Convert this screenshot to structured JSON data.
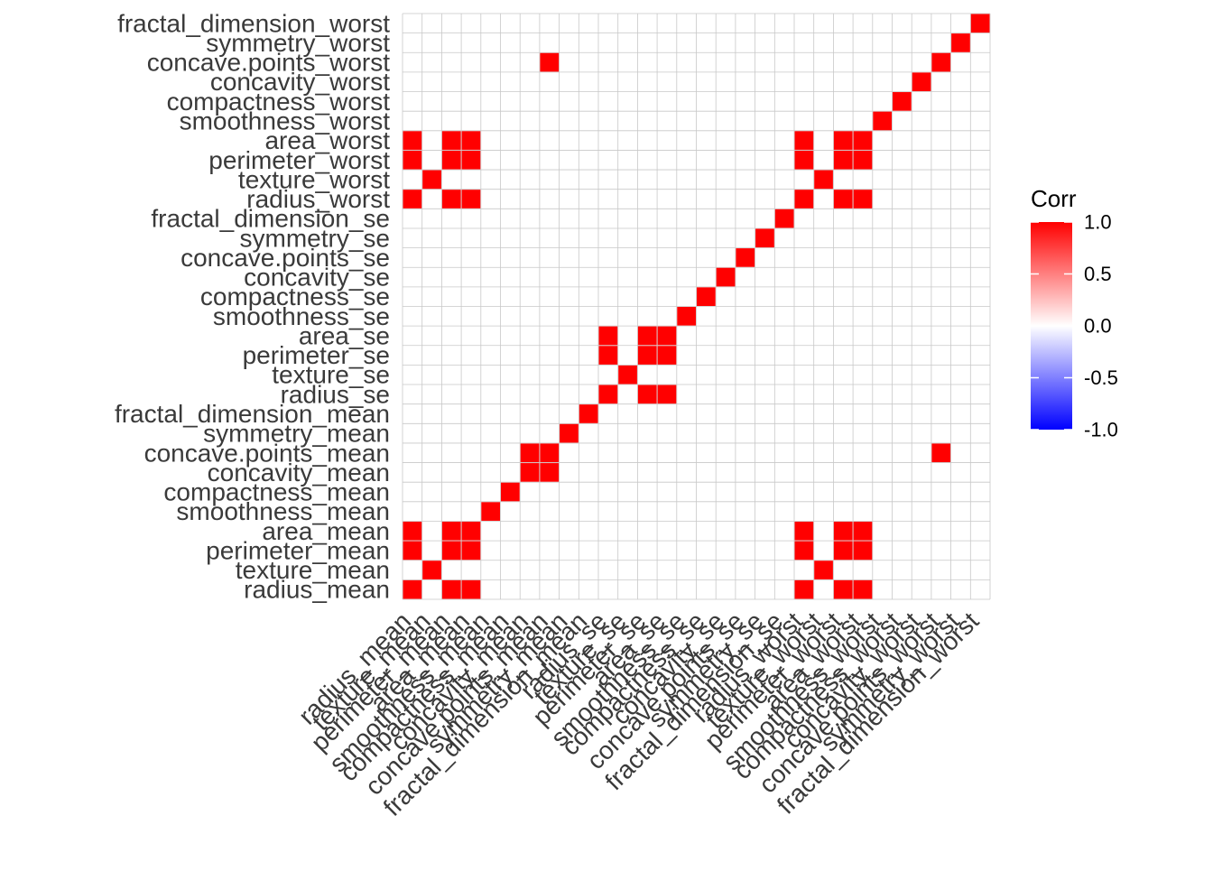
{
  "chart_data": {
    "type": "heatmap",
    "title": "",
    "xlabel": "",
    "ylabel": "",
    "variables": [
      "radius_mean",
      "texture_mean",
      "perimeter_mean",
      "area_mean",
      "smoothness_mean",
      "compactness_mean",
      "concavity_mean",
      "concave.points_mean",
      "symmetry_mean",
      "fractal_dimension_mean",
      "radius_se",
      "texture_se",
      "perimeter_se",
      "area_se",
      "smoothness_se",
      "compactness_se",
      "concavity_se",
      "concave.points_se",
      "symmetry_se",
      "fractal_dimension_se",
      "radius_worst",
      "texture_worst",
      "perimeter_worst",
      "area_worst",
      "smoothness_worst",
      "compactness_worst",
      "concavity_worst",
      "concave.points_worst",
      "symmetry_worst",
      "fractal_dimension_worst"
    ],
    "cells": [
      [
        0,
        0,
        1
      ],
      [
        0,
        2,
        1
      ],
      [
        0,
        3,
        1
      ],
      [
        0,
        20,
        1
      ],
      [
        0,
        22,
        1
      ],
      [
        0,
        23,
        1
      ],
      [
        1,
        1,
        1
      ],
      [
        1,
        21,
        1
      ],
      [
        2,
        0,
        1
      ],
      [
        2,
        2,
        1
      ],
      [
        2,
        3,
        1
      ],
      [
        2,
        20,
        1
      ],
      [
        2,
        22,
        1
      ],
      [
        2,
        23,
        1
      ],
      [
        3,
        0,
        1
      ],
      [
        3,
        2,
        1
      ],
      [
        3,
        3,
        1
      ],
      [
        3,
        20,
        1
      ],
      [
        3,
        22,
        1
      ],
      [
        3,
        23,
        1
      ],
      [
        4,
        4,
        1
      ],
      [
        5,
        5,
        1
      ],
      [
        6,
        6,
        1
      ],
      [
        6,
        7,
        1
      ],
      [
        7,
        6,
        1
      ],
      [
        7,
        7,
        1
      ],
      [
        7,
        27,
        1
      ],
      [
        8,
        8,
        1
      ],
      [
        9,
        9,
        1
      ],
      [
        10,
        10,
        1
      ],
      [
        10,
        12,
        1
      ],
      [
        10,
        13,
        1
      ],
      [
        11,
        11,
        1
      ],
      [
        12,
        10,
        1
      ],
      [
        12,
        12,
        1
      ],
      [
        12,
        13,
        1
      ],
      [
        13,
        10,
        1
      ],
      [
        13,
        12,
        1
      ],
      [
        13,
        13,
        1
      ],
      [
        14,
        14,
        1
      ],
      [
        15,
        15,
        1
      ],
      [
        16,
        16,
        1
      ],
      [
        17,
        17,
        1
      ],
      [
        18,
        18,
        1
      ],
      [
        19,
        19,
        1
      ],
      [
        20,
        0,
        1
      ],
      [
        20,
        2,
        1
      ],
      [
        20,
        3,
        1
      ],
      [
        20,
        20,
        1
      ],
      [
        20,
        22,
        1
      ],
      [
        20,
        23,
        1
      ],
      [
        21,
        1,
        1
      ],
      [
        21,
        21,
        1
      ],
      [
        22,
        0,
        1
      ],
      [
        22,
        2,
        1
      ],
      [
        22,
        3,
        1
      ],
      [
        22,
        20,
        1
      ],
      [
        22,
        22,
        1
      ],
      [
        22,
        23,
        1
      ],
      [
        23,
        0,
        1
      ],
      [
        23,
        2,
        1
      ],
      [
        23,
        3,
        1
      ],
      [
        23,
        20,
        1
      ],
      [
        23,
        22,
        1
      ],
      [
        23,
        23,
        1
      ],
      [
        24,
        24,
        1
      ],
      [
        25,
        25,
        1
      ],
      [
        26,
        26,
        1
      ],
      [
        27,
        7,
        1
      ],
      [
        27,
        27,
        1
      ],
      [
        28,
        28,
        1
      ],
      [
        29,
        29,
        1
      ]
    ],
    "cell_format": "[column_index, row_index, correlation]",
    "empty_cell_value": 0,
    "value_range": [
      -1,
      1
    ],
    "colors": {
      "low": "#0000ff",
      "mid": "#ffffff",
      "high": "#ff0000",
      "grid": "#c8c8c8",
      "text": "#3a3a3a"
    },
    "grid": true,
    "legend": {
      "title": "Corr",
      "ticks": [
        "1.0",
        "0.5",
        "0.0",
        "-0.5",
        "-1.0"
      ],
      "tick_values": [
        1,
        0.5,
        0,
        -0.5,
        -1
      ],
      "placement": "right"
    }
  }
}
